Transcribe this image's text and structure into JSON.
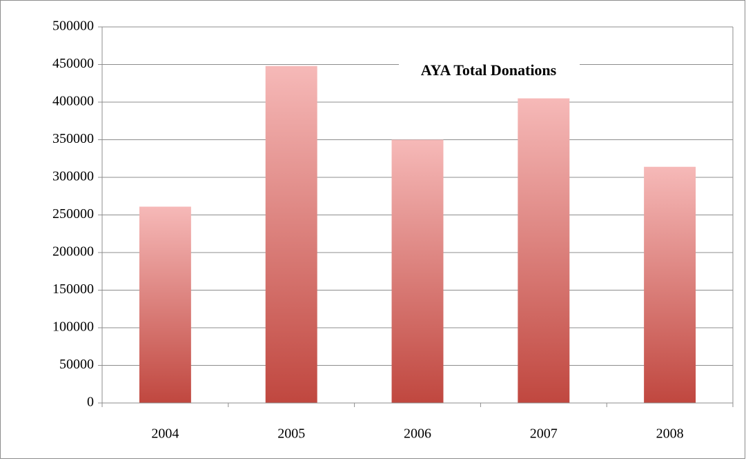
{
  "chart_data": {
    "type": "bar",
    "title": "AYA Total Donations",
    "categories": [
      "2004",
      "2005",
      "2006",
      "2007",
      "2008"
    ],
    "values": [
      261000,
      448000,
      350000,
      405000,
      314000
    ],
    "color": "#c0473f",
    "ylim": [
      0,
      500000
    ],
    "yticks": [
      0,
      50000,
      100000,
      150000,
      200000,
      250000,
      300000,
      350000,
      400000,
      450000,
      500000
    ],
    "grid": true
  }
}
